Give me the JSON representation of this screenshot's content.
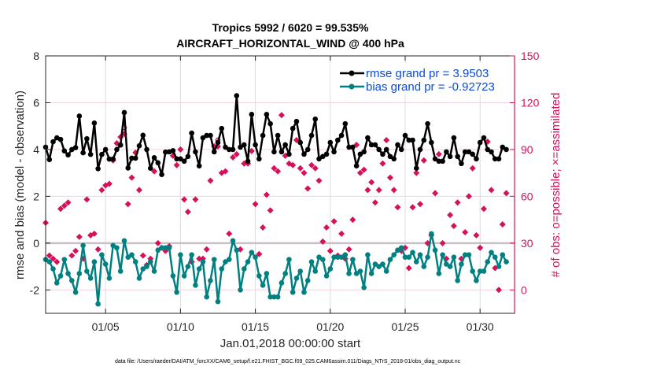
{
  "chart_data": {
    "type": "line",
    "title": [
      "Tropics 5992 / 6020 = 99.535%",
      "AIRCRAFT_HORIZONTAL_WIND @ 400 hPa"
    ],
    "xlabel": "Jan.01,2018 00:00:00 start",
    "ylabel": "rmse and bias (model - observation)",
    "ylabel_right": "# of obs: o=possible; ×=assimilated",
    "footnote": "data file: /Users/raeder/DAI/ATM_forcXX/CAM6_setup/f.e21.FHIST_BGC.f09_025.CAM6assim.011/Diags_NTrS_2018-01/obs_diag_output.nc",
    "xlim_days": [
      1,
      32.3
    ],
    "ylim": [
      -3,
      8
    ],
    "ylim_right": [
      -15,
      150
    ],
    "xticks": [
      {
        "day": 5,
        "label": "01/05"
      },
      {
        "day": 10,
        "label": "01/10"
      },
      {
        "day": 15,
        "label": "01/15"
      },
      {
        "day": 20,
        "label": "01/20"
      },
      {
        "day": 25,
        "label": "01/25"
      },
      {
        "day": 30,
        "label": "01/30"
      }
    ],
    "yticks": [
      {
        "v": -2,
        "label": "-2"
      },
      {
        "v": 0,
        "label": "0"
      },
      {
        "v": 2,
        "label": "2"
      },
      {
        "v": 4,
        "label": "4"
      },
      {
        "v": 6,
        "label": "6"
      },
      {
        "v": 8,
        "label": "8"
      }
    ],
    "yticks_right": [
      {
        "v": 0,
        "label": "0"
      },
      {
        "v": 30,
        "label": "30"
      },
      {
        "v": 60,
        "label": "60"
      },
      {
        "v": 90,
        "label": "90"
      },
      {
        "v": 120,
        "label": "120"
      },
      {
        "v": 150,
        "label": "150"
      }
    ],
    "grid": true,
    "legend": {
      "placement": "top-right",
      "entries": [
        "rmse grand pr = 3.9503",
        "bias grand pr = -0.92723"
      ]
    },
    "x_start_day": 1.0,
    "x_step_days": 0.25,
    "series": [
      {
        "name": "rmse grand pr = 3.9503",
        "color": "#000000",
        "values": [
          4.1,
          3.57,
          4.33,
          4.5,
          4.43,
          3.94,
          3.77,
          4.0,
          4.08,
          5.43,
          3.86,
          4.46,
          3.79,
          5.13,
          3.18,
          3.79,
          4.0,
          3.59,
          3.59,
          4.0,
          4.19,
          5.58,
          3.21,
          3.63,
          3.63,
          4.16,
          4.61,
          4.0,
          3.2,
          3.65,
          3.43,
          2.93,
          3.89,
          3.9,
          3.95,
          3.6,
          3.6,
          3.5,
          3.7,
          4.7,
          3.9,
          3.3,
          4.5,
          4.6,
          4.6,
          3.9,
          4.3,
          4.9,
          4.1,
          4.0,
          4.0,
          6.3,
          4.1,
          4.2,
          3.5,
          5.5,
          4.2,
          3.6,
          4.6,
          5.5,
          5.1,
          3.9,
          4.6,
          3.9,
          4.2,
          3.8,
          4.9,
          5.2,
          4.3,
          3.8,
          4.0,
          4.6,
          5.3,
          3.6,
          3.7,
          3.8,
          4.3,
          3.9,
          4.4,
          4.6,
          5.1,
          4.1,
          4.1,
          3.3,
          3.8,
          3.9,
          4.5,
          4.2,
          4.2,
          4.0,
          3.8,
          4.0,
          3.7,
          3.6,
          4.2,
          4.0,
          4.6,
          4.4,
          4.4,
          3.2,
          4.0,
          4.4,
          5.1,
          4.3,
          3.6,
          3.5,
          3.5,
          3.9,
          3.7,
          4.5,
          3.7,
          3.4,
          3.9,
          3.9,
          3.8,
          3.6,
          4.3,
          4.5,
          4.0,
          3.9,
          3.6,
          3.6,
          4.1,
          4.0
        ]
      },
      {
        "name": "bias grand pr = -0.92723",
        "color": "#008080",
        "values": [
          -0.7,
          -0.8,
          -1.1,
          -1.7,
          -1.4,
          -0.7,
          -1.3,
          -1.6,
          -2.1,
          -1.3,
          -0.1,
          -1.2,
          -1.5,
          -0.8,
          -2.6,
          -0.5,
          -0.9,
          -1.5,
          -0.1,
          -0.2,
          -1.2,
          0.1,
          -0.6,
          -0.5,
          -0.8,
          -1.5,
          -1.1,
          -1.0,
          -0.8,
          -1.2,
          -0.3,
          -0.2,
          -0.2,
          -0.2,
          -1.4,
          -2.1,
          -0.5,
          -1.4,
          -1.0,
          -0.5,
          -1.8,
          -1.1,
          -0.8,
          -2.3,
          -1.6,
          -0.7,
          -2.5,
          -1.1,
          -0.8,
          -0.7,
          0.1,
          -0.3,
          -2.0,
          -1.1,
          -0.8,
          -0.4,
          -0.6,
          -1.4,
          -1.8,
          -1.3,
          -2.3,
          -2.3,
          -2.3,
          -1.7,
          -1.3,
          -0.7,
          -2.1,
          -1.5,
          -1.2,
          -2.1,
          -1.6,
          -0.8,
          -1.2,
          -0.6,
          -0.7,
          -1.4,
          -1.1,
          -0.6,
          -0.6,
          -0.6,
          -0.5,
          -1.3,
          -0.7,
          -1.3,
          -1.2,
          -1.9,
          -0.5,
          -1.3,
          -0.9,
          -1.0,
          -0.9,
          -1.2,
          -0.7,
          -0.5,
          -0.3,
          -0.2,
          -0.6,
          -0.6,
          -0.4,
          -0.8,
          -0.5,
          -1.0,
          -0.6,
          0.4,
          -0.3,
          -1.3,
          -0.5,
          -0.9,
          -1.0,
          -0.6,
          -1.6,
          -0.9,
          -0.5,
          -0.5,
          -1.2,
          -1.6,
          -1.2,
          -1.2,
          -0.8,
          -0.4,
          -0.6,
          -1.0,
          -0.5,
          -0.8
        ]
      },
      {
        "name": "obs assimilated (right axis)",
        "color": "#d6105a",
        "marker": "x",
        "values": [
          43,
          22,
          20,
          18,
          52,
          54,
          56,
          22,
          25,
          34,
          20,
          58,
          35,
          36,
          26,
          64,
          67,
          68,
          83,
          94,
          98,
          100,
          55,
          72,
          88,
          64,
          22,
          16,
          20,
          76,
          30,
          27,
          25,
          28,
          86,
          80,
          90,
          58,
          50,
          18,
          58,
          20,
          20,
          26,
          70,
          92,
          92,
          75,
          76,
          36,
          85,
          87,
          26,
          81,
          81,
          89,
          55,
          23,
          40,
          61,
          51,
          78,
          76,
          112,
          86,
          81,
          80,
          96,
          78,
          75,
          65,
          80,
          78,
          70,
          31,
          40,
          25,
          44,
          22,
          36,
          20,
          26,
          45,
          93,
          75,
          77,
          64,
          69,
          56,
          64,
          81,
          96,
          72,
          64,
          53,
          25,
          27,
          14,
          53,
          75,
          55,
          83,
          30,
          35,
          62,
          87,
          30,
          20,
          48,
          41,
          56,
          20,
          37,
          60,
          78,
          35,
          27,
          52,
          95,
          64,
          14,
          0,
          42,
          62
        ]
      },
      {
        "name": "obs possible (right axis)",
        "color": "#d6105a",
        "marker": "o",
        "values": [
          43,
          22,
          20,
          18,
          52,
          54,
          56,
          22,
          25,
          34,
          20,
          58,
          35,
          36,
          26,
          64,
          67,
          68,
          83,
          94,
          98,
          101,
          55,
          72,
          88,
          64,
          22,
          16,
          20,
          76,
          30,
          27,
          25,
          28,
          86,
          80,
          90,
          58,
          50,
          18,
          58,
          20,
          20,
          26,
          70,
          92,
          93,
          75,
          76,
          36,
          85,
          87,
          26,
          81,
          81,
          89,
          55,
          23,
          40,
          61,
          51,
          78,
          76,
          112,
          86,
          81,
          80,
          96,
          78,
          75,
          65,
          80,
          78,
          70,
          31,
          40,
          25,
          44,
          22,
          36,
          20,
          26,
          45,
          93,
          75,
          77,
          64,
          69,
          56,
          64,
          81,
          96,
          72,
          64,
          53,
          25,
          27,
          14,
          53,
          75,
          55,
          83,
          30,
          35,
          62,
          87,
          30,
          20,
          48,
          41,
          56,
          20,
          37,
          60,
          78,
          35,
          27,
          52,
          95,
          64,
          14,
          0,
          42,
          62
        ]
      }
    ]
  }
}
